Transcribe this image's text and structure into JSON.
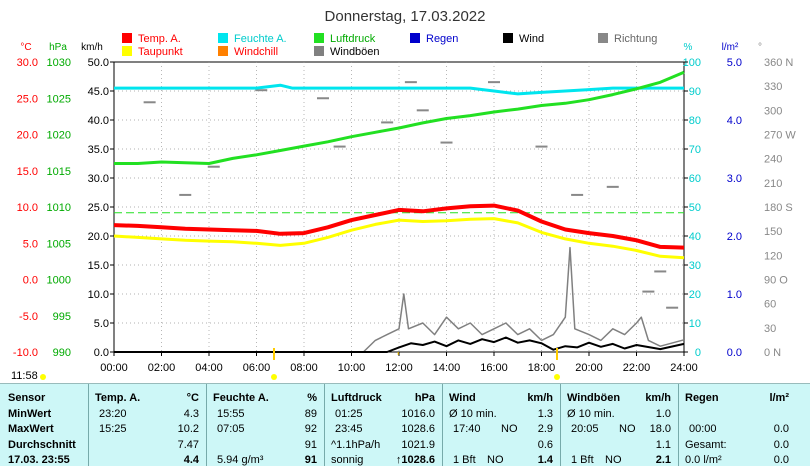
{
  "chart_data": {
    "type": "line",
    "title": "Donnerstag, 17.03.2022",
    "x_ticks": [
      "00:00",
      "02:00",
      "04:00",
      "06:00",
      "08:00",
      "10:00",
      "12:00",
      "14:00",
      "16:00",
      "18:00",
      "20:00",
      "22:00",
      "24:00"
    ],
    "legend": [
      {
        "label": "Temp. A.",
        "color": "#ff0000"
      },
      {
        "label": "Feuchte A.",
        "color": "#00e5ee"
      },
      {
        "label": "Luftdruck",
        "color": "#22e022"
      },
      {
        "label": "Regen",
        "color": "#0000cc"
      },
      {
        "label": "Wind",
        "color": "#000000"
      },
      {
        "label": "Richtung",
        "color": "#888888"
      },
      {
        "label": "Taupunkt",
        "color": "#ffff00"
      },
      {
        "label": "Windchill",
        "color": "#ff8000"
      },
      {
        "label": "Windböen",
        "color": "#808080"
      }
    ],
    "axes": {
      "temp": {
        "unit": "°C",
        "color": "#ff0000",
        "ticks": [
          "30.0",
          "25.0",
          "20.0",
          "15.0",
          "10.0",
          "5.0",
          "0.0",
          "-5.0",
          "-10.0"
        ],
        "range": [
          -10,
          30
        ]
      },
      "pressure": {
        "unit": "hPa",
        "color": "#00aa00",
        "ticks": [
          "1030",
          "1025",
          "1020",
          "1015",
          "1010",
          "1005",
          "1000",
          "995",
          "990"
        ],
        "range": [
          990,
          1030
        ]
      },
      "wind": {
        "unit": "km/h",
        "color": "#000000",
        "ticks": [
          "50.0",
          "45.0",
          "40.0",
          "35.0",
          "30.0",
          "25.0",
          "20.0",
          "15.0",
          "10.0",
          "5.0",
          "0.0"
        ],
        "range": [
          0,
          50
        ]
      },
      "humidity": {
        "unit": "%",
        "color": "#00cccc",
        "ticks": [
          "100",
          "90",
          "80",
          "70",
          "60",
          "50",
          "40",
          "30",
          "20",
          "10",
          "0"
        ],
        "range": [
          0,
          100
        ]
      },
      "rain": {
        "unit": "l/m²",
        "color": "#0000cc",
        "ticks": [
          "5.0",
          "4.0",
          "3.0",
          "2.0",
          "1.0",
          "0.0"
        ],
        "range": [
          0,
          5
        ]
      },
      "direction": {
        "unit": "°",
        "color": "#888888",
        "ticks": [
          "360 N",
          "330",
          "300",
          "270 W",
          "240",
          "210",
          "180 S",
          "150",
          "120",
          "90 O",
          "60",
          "30",
          "0 N"
        ],
        "range": [
          0,
          360
        ]
      }
    },
    "series": [
      {
        "name": "Temp. A.",
        "axis": "temp",
        "color": "#ff0000",
        "points": [
          [
            0,
            7.5
          ],
          [
            1,
            7.4
          ],
          [
            2,
            7.2
          ],
          [
            3,
            7.0
          ],
          [
            4,
            6.9
          ],
          [
            5,
            6.8
          ],
          [
            6,
            6.7
          ],
          [
            7,
            6.3
          ],
          [
            8,
            6.4
          ],
          [
            9,
            7.2
          ],
          [
            10,
            8.2
          ],
          [
            11,
            8.9
          ],
          [
            12,
            9.6
          ],
          [
            13,
            9.4
          ],
          [
            14,
            9.8
          ],
          [
            15,
            10.1
          ],
          [
            16,
            10.2
          ],
          [
            17,
            9.5
          ],
          [
            18,
            8.0
          ],
          [
            19,
            6.9
          ],
          [
            20,
            6.4
          ],
          [
            21,
            6.0
          ],
          [
            22,
            5.4
          ],
          [
            23,
            4.5
          ],
          [
            24,
            4.4
          ]
        ]
      },
      {
        "name": "Taupunkt",
        "axis": "temp",
        "color": "#ffff00",
        "points": [
          [
            0,
            6.0
          ],
          [
            1,
            5.8
          ],
          [
            2,
            5.6
          ],
          [
            3,
            5.4
          ],
          [
            4,
            5.3
          ],
          [
            5,
            5.2
          ],
          [
            6,
            5.0
          ],
          [
            7,
            4.7
          ],
          [
            8,
            5.0
          ],
          [
            9,
            5.8
          ],
          [
            10,
            6.8
          ],
          [
            11,
            7.6
          ],
          [
            12,
            8.2
          ],
          [
            13,
            8.0
          ],
          [
            14,
            8.1
          ],
          [
            15,
            8.3
          ],
          [
            16,
            8.4
          ],
          [
            17,
            7.8
          ],
          [
            18,
            6.5
          ],
          [
            19,
            5.6
          ],
          [
            20,
            5.0
          ],
          [
            21,
            4.6
          ],
          [
            22,
            4.0
          ],
          [
            23,
            3.2
          ],
          [
            24,
            3.0
          ]
        ]
      },
      {
        "name": "Luftdruck",
        "axis": "pressure",
        "color": "#22e022",
        "points": [
          [
            0,
            1016.0
          ],
          [
            1,
            1016.0
          ],
          [
            2,
            1016.2
          ],
          [
            3,
            1016.1
          ],
          [
            4,
            1016.0
          ],
          [
            5,
            1016.7
          ],
          [
            6,
            1017.2
          ],
          [
            7,
            1017.8
          ],
          [
            8,
            1018.4
          ],
          [
            9,
            1019.0
          ],
          [
            10,
            1019.7
          ],
          [
            11,
            1020.3
          ],
          [
            12,
            1020.9
          ],
          [
            13,
            1021.6
          ],
          [
            14,
            1022.2
          ],
          [
            15,
            1022.6
          ],
          [
            16,
            1023.1
          ],
          [
            17,
            1023.5
          ],
          [
            18,
            1024.0
          ],
          [
            19,
            1024.3
          ],
          [
            20,
            1024.8
          ],
          [
            21,
            1025.5
          ],
          [
            22,
            1026.3
          ],
          [
            23,
            1027.2
          ],
          [
            24,
            1028.6
          ]
        ]
      },
      {
        "name": "Feuchte A.",
        "axis": "humidity",
        "color": "#00e5ee",
        "points": [
          [
            0,
            91
          ],
          [
            6,
            91
          ],
          [
            7,
            92
          ],
          [
            7.5,
            91
          ],
          [
            12,
            91
          ],
          [
            15,
            91
          ],
          [
            16,
            90
          ],
          [
            17,
            89
          ],
          [
            18,
            89.5
          ],
          [
            19,
            90
          ],
          [
            20,
            90.5
          ],
          [
            21,
            91
          ],
          [
            22,
            91
          ],
          [
            24,
            91
          ]
        ]
      },
      {
        "name": "Wind",
        "axis": "wind",
        "color": "#000000",
        "points": [
          [
            0,
            0
          ],
          [
            11.5,
            0
          ],
          [
            12,
            0.8
          ],
          [
            12.5,
            1.5
          ],
          [
            13,
            1.2
          ],
          [
            13.5,
            1.8
          ],
          [
            14,
            1.0
          ],
          [
            14.5,
            2.0
          ],
          [
            15,
            1.4
          ],
          [
            15.5,
            2.2
          ],
          [
            16,
            1.7
          ],
          [
            16.5,
            2.5
          ],
          [
            17,
            1.6
          ],
          [
            17.5,
            2.0
          ],
          [
            18,
            1.5
          ],
          [
            18.5,
            0.4
          ],
          [
            19,
            1.0
          ],
          [
            19.5,
            0.8
          ],
          [
            20,
            1.6
          ],
          [
            20.5,
            0.9
          ],
          [
            21,
            1.4
          ],
          [
            21.5,
            0.6
          ],
          [
            22,
            1.2
          ],
          [
            23,
            0.5
          ],
          [
            24,
            1.4
          ]
        ]
      },
      {
        "name": "Windböen",
        "axis": "wind",
        "color": "#808080",
        "points": [
          [
            0,
            0
          ],
          [
            10.5,
            0
          ],
          [
            11,
            2
          ],
          [
            11.5,
            3
          ],
          [
            12,
            4
          ],
          [
            12.2,
            10
          ],
          [
            12.4,
            4
          ],
          [
            13,
            5
          ],
          [
            13.5,
            3
          ],
          [
            14,
            6
          ],
          [
            14.5,
            4
          ],
          [
            15,
            5
          ],
          [
            15.5,
            3
          ],
          [
            16,
            4
          ],
          [
            16.5,
            5
          ],
          [
            17,
            3
          ],
          [
            17.5,
            4
          ],
          [
            18,
            2
          ],
          [
            18.5,
            3
          ],
          [
            19,
            6
          ],
          [
            19.2,
            18
          ],
          [
            19.4,
            4
          ],
          [
            20,
            3
          ],
          [
            20.5,
            2
          ],
          [
            21,
            4
          ],
          [
            21.5,
            3
          ],
          [
            22,
            5
          ],
          [
            22.2,
            6
          ],
          [
            22.5,
            2
          ],
          [
            23,
            1
          ],
          [
            24,
            2.1
          ]
        ]
      },
      {
        "name": "Richtung",
        "axis": "direction",
        "color": "#888888",
        "points": [
          [
            1.5,
            310
          ],
          [
            3,
            195
          ],
          [
            4.2,
            230
          ],
          [
            6.2,
            325
          ],
          [
            8.8,
            315
          ],
          [
            9.5,
            255
          ],
          [
            11.5,
            285
          ],
          [
            12.5,
            335
          ],
          [
            13,
            300
          ],
          [
            14,
            260
          ],
          [
            16,
            335
          ],
          [
            18,
            255
          ],
          [
            19.5,
            195
          ],
          [
            21,
            205
          ],
          [
            22.5,
            75
          ],
          [
            23,
            100
          ],
          [
            23.5,
            55
          ]
        ]
      }
    ],
    "dashed_line": {
      "axis": "temp",
      "value": 9.2,
      "color": "#22e022"
    },
    "markers": [
      {
        "time": "11:58"
      }
    ]
  },
  "stats": {
    "sensor": {
      "header": "Sensor",
      "rows": [
        "MinWert",
        "MaxWert",
        "Durchschnitt",
        "17.03. 23:55"
      ]
    },
    "temp": {
      "header": "Temp. A.",
      "unit": "°C",
      "rows": [
        [
          "23:20",
          "4.3"
        ],
        [
          "15:25",
          "10.2"
        ],
        [
          "",
          "7.47"
        ],
        [
          "",
          "4.4"
        ]
      ]
    },
    "feuchte": {
      "header": "Feuchte A.",
      "unit": "%",
      "rows": [
        [
          "15:55",
          "89"
        ],
        [
          "07:05",
          "92"
        ],
        [
          "",
          "91"
        ],
        [
          "5.94 g/m³",
          "91"
        ]
      ]
    },
    "luftdruck": {
      "header": "Luftdruck",
      "unit": "hPa",
      "rows": [
        [
          "01:25",
          "1016.0"
        ],
        [
          "23:45",
          "1028.6"
        ],
        [
          "^1.1hPa/h",
          "1021.9"
        ],
        [
          "sonnig",
          "↑1028.6"
        ]
      ]
    },
    "wind": {
      "header": "Wind",
      "unit": "km/h",
      "rows": [
        [
          "Ø 10 min.",
          "",
          "1.3"
        ],
        [
          "17:40",
          "NO",
          "2.9"
        ],
        [
          "",
          "",
          "0.6"
        ],
        [
          "1 Bft",
          "NO",
          "1.4"
        ]
      ]
    },
    "windboeen": {
      "header": "Windböen",
      "unit": "km/h",
      "rows": [
        [
          "Ø 10 min.",
          "",
          "1.0"
        ],
        [
          "20:05",
          "NO",
          "18.0"
        ],
        [
          "",
          "",
          "1.1"
        ],
        [
          "1 Bft",
          "NO",
          "2.1"
        ]
      ]
    },
    "regen": {
      "header": "Regen",
      "unit": "l/m²",
      "rows": [
        [
          "",
          ""
        ],
        [
          "00:00",
          "0.0"
        ],
        [
          "Gesamt:",
          "0.0"
        ],
        [
          "0.0 l/m²",
          "0.0"
        ]
      ]
    }
  }
}
